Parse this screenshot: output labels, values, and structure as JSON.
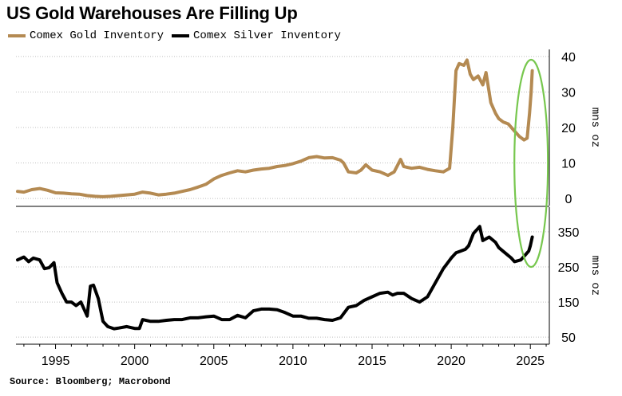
{
  "title": "US Gold Warehouses Are Filling Up",
  "source": "Source: Bloomberg; Macrobond",
  "colors": {
    "gold": "#b48a52",
    "silver": "#000000",
    "highlight": "#77c74e",
    "grid": "#bfbfbf"
  },
  "chart_data": [
    {
      "type": "line",
      "name": "top-panel",
      "ylabel": "mns oz",
      "ylim": [
        -2,
        42
      ],
      "yticks": [
        0,
        10,
        20,
        30,
        40
      ],
      "xlim": [
        1992.5,
        2026.2
      ],
      "series": [
        {
          "name": "Comex Gold Inventory",
          "color": "#b48a52",
          "x": [
            1992.6,
            1993.0,
            1993.5,
            1994.0,
            1994.5,
            1995.0,
            1995.5,
            1996.0,
            1996.5,
            1997.0,
            1997.5,
            1998.0,
            1998.5,
            1999.0,
            1999.5,
            2000.0,
            2000.5,
            2001.0,
            2001.5,
            2002.0,
            2002.5,
            2003.0,
            2003.5,
            2004.0,
            2004.5,
            2005.0,
            2005.5,
            2006.0,
            2006.5,
            2007.0,
            2007.5,
            2008.0,
            2008.5,
            2009.0,
            2009.5,
            2010.0,
            2010.5,
            2011.0,
            2011.5,
            2012.0,
            2012.5,
            2013.0,
            2013.2,
            2013.5,
            2014.0,
            2014.3,
            2014.6,
            2015.0,
            2015.5,
            2016.0,
            2016.4,
            2016.8,
            2017.0,
            2017.5,
            2018.0,
            2018.5,
            2019.0,
            2019.5,
            2019.9,
            2020.1,
            2020.3,
            2020.5,
            2020.8,
            2021.0,
            2021.2,
            2021.4,
            2021.7,
            2022.0,
            2022.2,
            2022.5,
            2022.8,
            2023.0,
            2023.3,
            2023.6,
            2024.0,
            2024.3,
            2024.6,
            2024.8,
            2024.95,
            2025.05,
            2025.12
          ],
          "y": [
            2.0,
            1.8,
            2.5,
            2.8,
            2.3,
            1.6,
            1.5,
            1.3,
            1.2,
            0.8,
            0.6,
            0.5,
            0.6,
            0.8,
            1.0,
            1.2,
            1.8,
            1.5,
            1.0,
            1.2,
            1.5,
            2.0,
            2.5,
            3.2,
            4.0,
            5.5,
            6.5,
            7.2,
            7.8,
            7.5,
            8.0,
            8.3,
            8.5,
            9.0,
            9.3,
            9.8,
            10.5,
            11.5,
            11.8,
            11.4,
            11.5,
            10.8,
            10.0,
            7.5,
            7.2,
            8.0,
            9.5,
            8.0,
            7.5,
            6.5,
            7.5,
            11.0,
            9.0,
            8.5,
            8.8,
            8.2,
            7.8,
            7.5,
            8.5,
            20.0,
            36.0,
            38.0,
            37.5,
            39.0,
            35.0,
            33.5,
            34.5,
            32.0,
            35.5,
            27.0,
            24.0,
            22.5,
            21.5,
            21.0,
            19.0,
            17.5,
            16.5,
            17.0,
            24.0,
            30.0,
            36.0
          ]
        }
      ]
    },
    {
      "type": "line",
      "name": "bottom-panel",
      "ylabel": "mns oz",
      "ylim": [
        30,
        420
      ],
      "yticks": [
        50,
        150,
        250,
        350
      ],
      "xlim": [
        1992.5,
        2026.2
      ],
      "xticks": [
        1995,
        2000,
        2005,
        2010,
        2015,
        2020,
        2025
      ],
      "series": [
        {
          "name": "Comex Silver Inventory",
          "color": "#000000",
          "x": [
            1992.6,
            1993.0,
            1993.3,
            1993.6,
            1994.0,
            1994.3,
            1994.6,
            1994.9,
            1995.1,
            1995.4,
            1995.7,
            1996.0,
            1996.3,
            1996.6,
            1997.0,
            1997.2,
            1997.4,
            1997.7,
            1998.0,
            1998.3,
            1998.7,
            1999.0,
            1999.5,
            2000.0,
            2000.3,
            2000.5,
            2001.0,
            2001.5,
            2002.0,
            2002.5,
            2003.0,
            2003.5,
            2004.0,
            2004.5,
            2005.0,
            2005.5,
            2006.0,
            2006.5,
            2007.0,
            2007.5,
            2008.0,
            2008.5,
            2009.0,
            2009.5,
            2010.0,
            2010.5,
            2011.0,
            2011.5,
            2012.0,
            2012.5,
            2013.0,
            2013.5,
            2014.0,
            2014.5,
            2015.0,
            2015.5,
            2016.0,
            2016.3,
            2016.6,
            2017.0,
            2017.5,
            2018.0,
            2018.5,
            2019.0,
            2019.5,
            2020.0,
            2020.3,
            2020.6,
            2020.9,
            2021.1,
            2021.4,
            2021.8,
            2022.0,
            2022.4,
            2022.8,
            2023.0,
            2023.4,
            2023.8,
            2024.0,
            2024.4,
            2024.7,
            2024.9,
            2025.0,
            2025.12
          ],
          "y": [
            270,
            278,
            265,
            275,
            270,
            245,
            248,
            262,
            205,
            175,
            150,
            150,
            140,
            150,
            110,
            195,
            198,
            160,
            95,
            80,
            74,
            76,
            80,
            75,
            75,
            100,
            95,
            95,
            98,
            100,
            100,
            105,
            105,
            108,
            110,
            100,
            100,
            112,
            105,
            125,
            130,
            130,
            128,
            120,
            110,
            110,
            104,
            104,
            100,
            98,
            105,
            135,
            140,
            155,
            165,
            175,
            178,
            170,
            175,
            175,
            160,
            150,
            165,
            205,
            245,
            275,
            290,
            295,
            300,
            310,
            345,
            365,
            325,
            335,
            320,
            305,
            290,
            275,
            265,
            270,
            285,
            295,
            310,
            335
          ]
        }
      ]
    }
  ],
  "legend": [
    {
      "label": "Comex Gold Inventory",
      "color": "#b48a52"
    },
    {
      "label": "Comex Silver Inventory",
      "color": "#000000"
    }
  ]
}
